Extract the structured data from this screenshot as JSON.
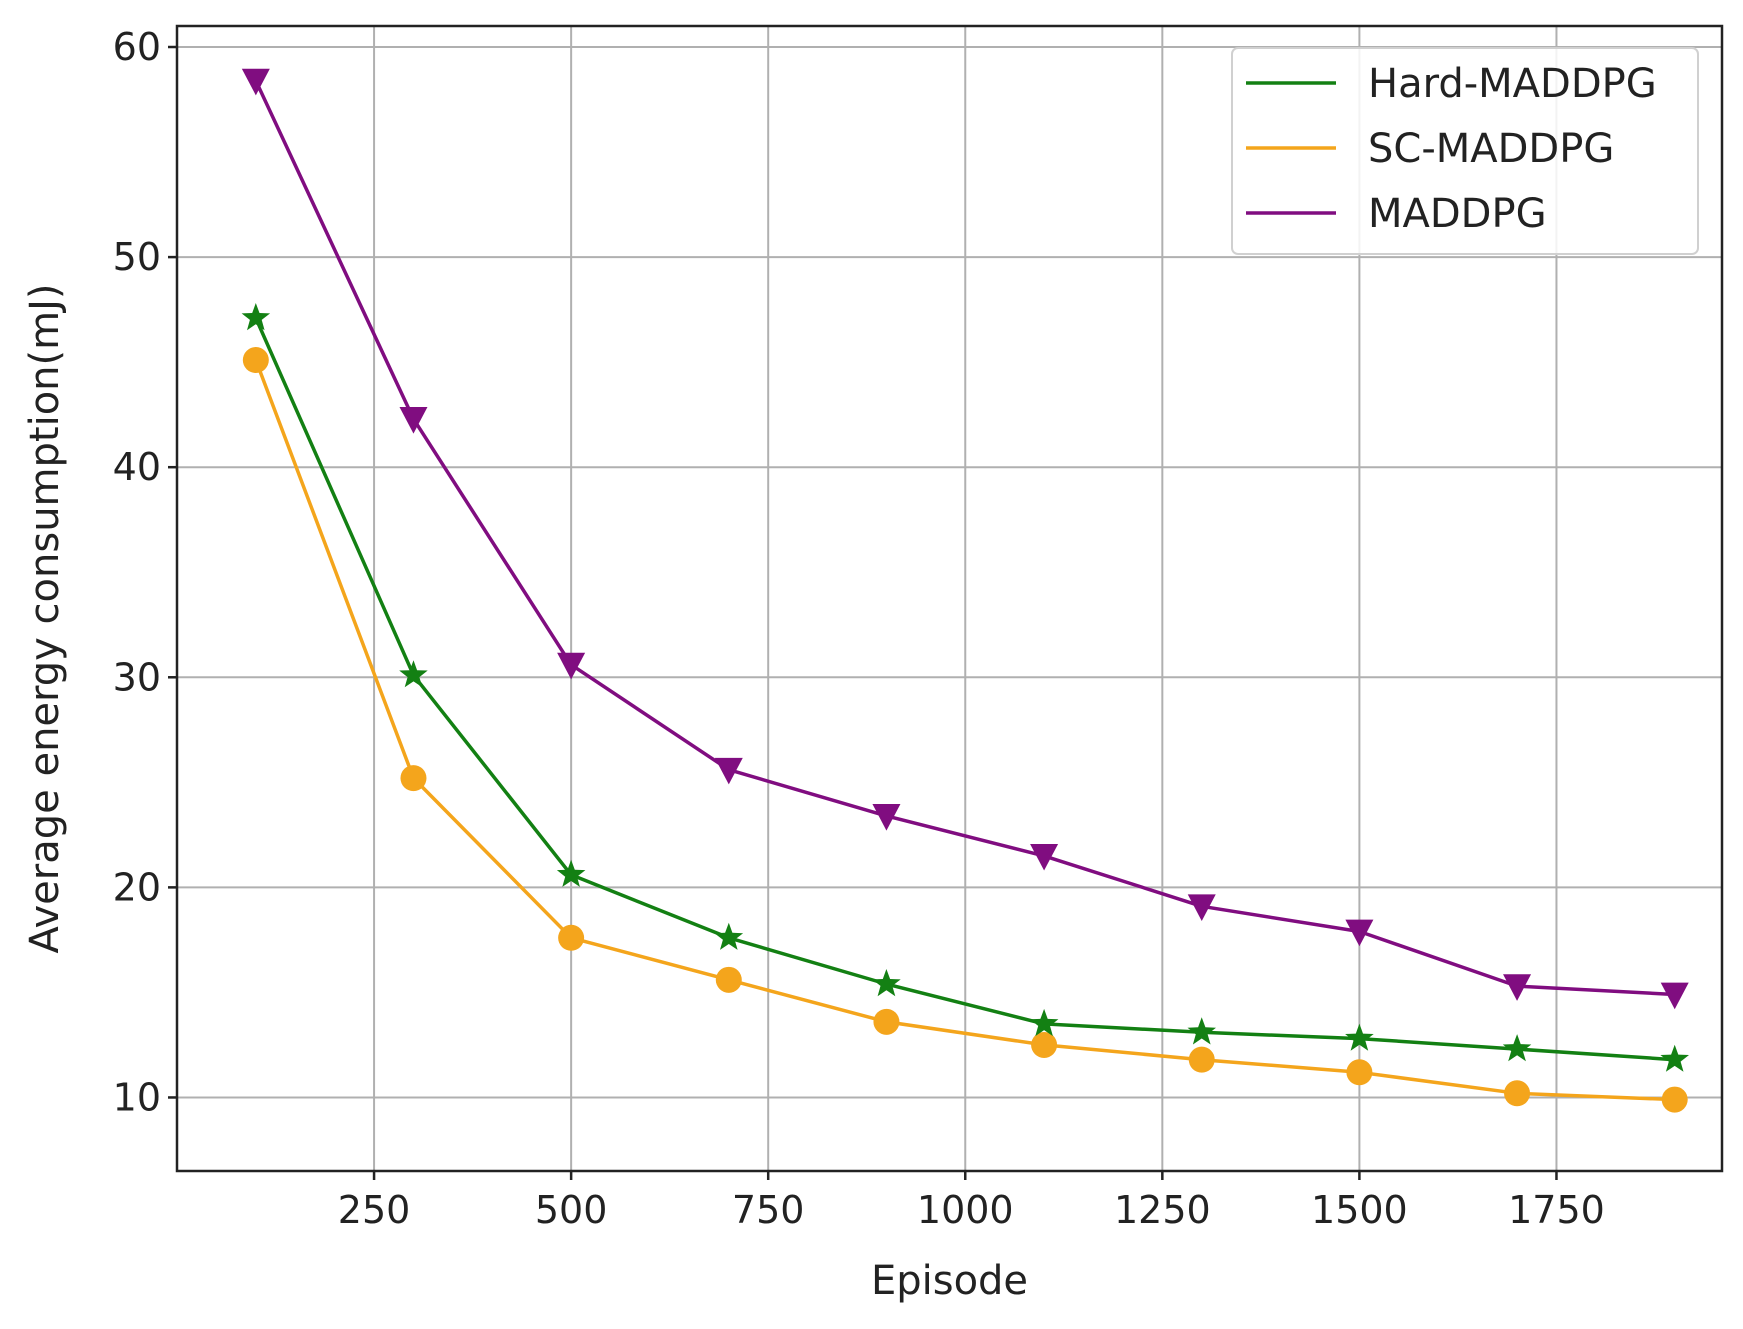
{
  "chart_data": {
    "type": "line",
    "title": "",
    "xlabel": "Episode",
    "ylabel": "Average energy consumption(mJ)",
    "xlim": [
      0,
      1960
    ],
    "ylim": [
      6.5,
      61
    ],
    "xticks": [
      250,
      500,
      750,
      1000,
      1250,
      1500,
      1750
    ],
    "yticks": [
      10,
      20,
      30,
      40,
      50,
      60
    ],
    "grid": true,
    "legend_position": "top-right",
    "x": [
      100,
      300,
      500,
      700,
      900,
      1100,
      1300,
      1500,
      1700,
      1900
    ],
    "series": [
      {
        "name": "Hard-MADDPG",
        "color": "#138013",
        "marker": "star",
        "values": [
          47.1,
          30.1,
          20.6,
          17.6,
          15.4,
          13.5,
          13.1,
          12.8,
          12.3,
          11.8
        ]
      },
      {
        "name": "SC-MADDPG",
        "color": "#f4a51c",
        "marker": "circle",
        "values": [
          45.1,
          25.2,
          17.6,
          15.6,
          13.6,
          12.5,
          11.8,
          11.2,
          10.2,
          9.9
        ]
      },
      {
        "name": "MADDPG",
        "color": "#800d80",
        "marker": "triangle-down",
        "values": [
          58.4,
          42.3,
          30.6,
          25.6,
          23.4,
          21.5,
          19.1,
          17.9,
          15.3,
          14.9
        ]
      }
    ]
  }
}
